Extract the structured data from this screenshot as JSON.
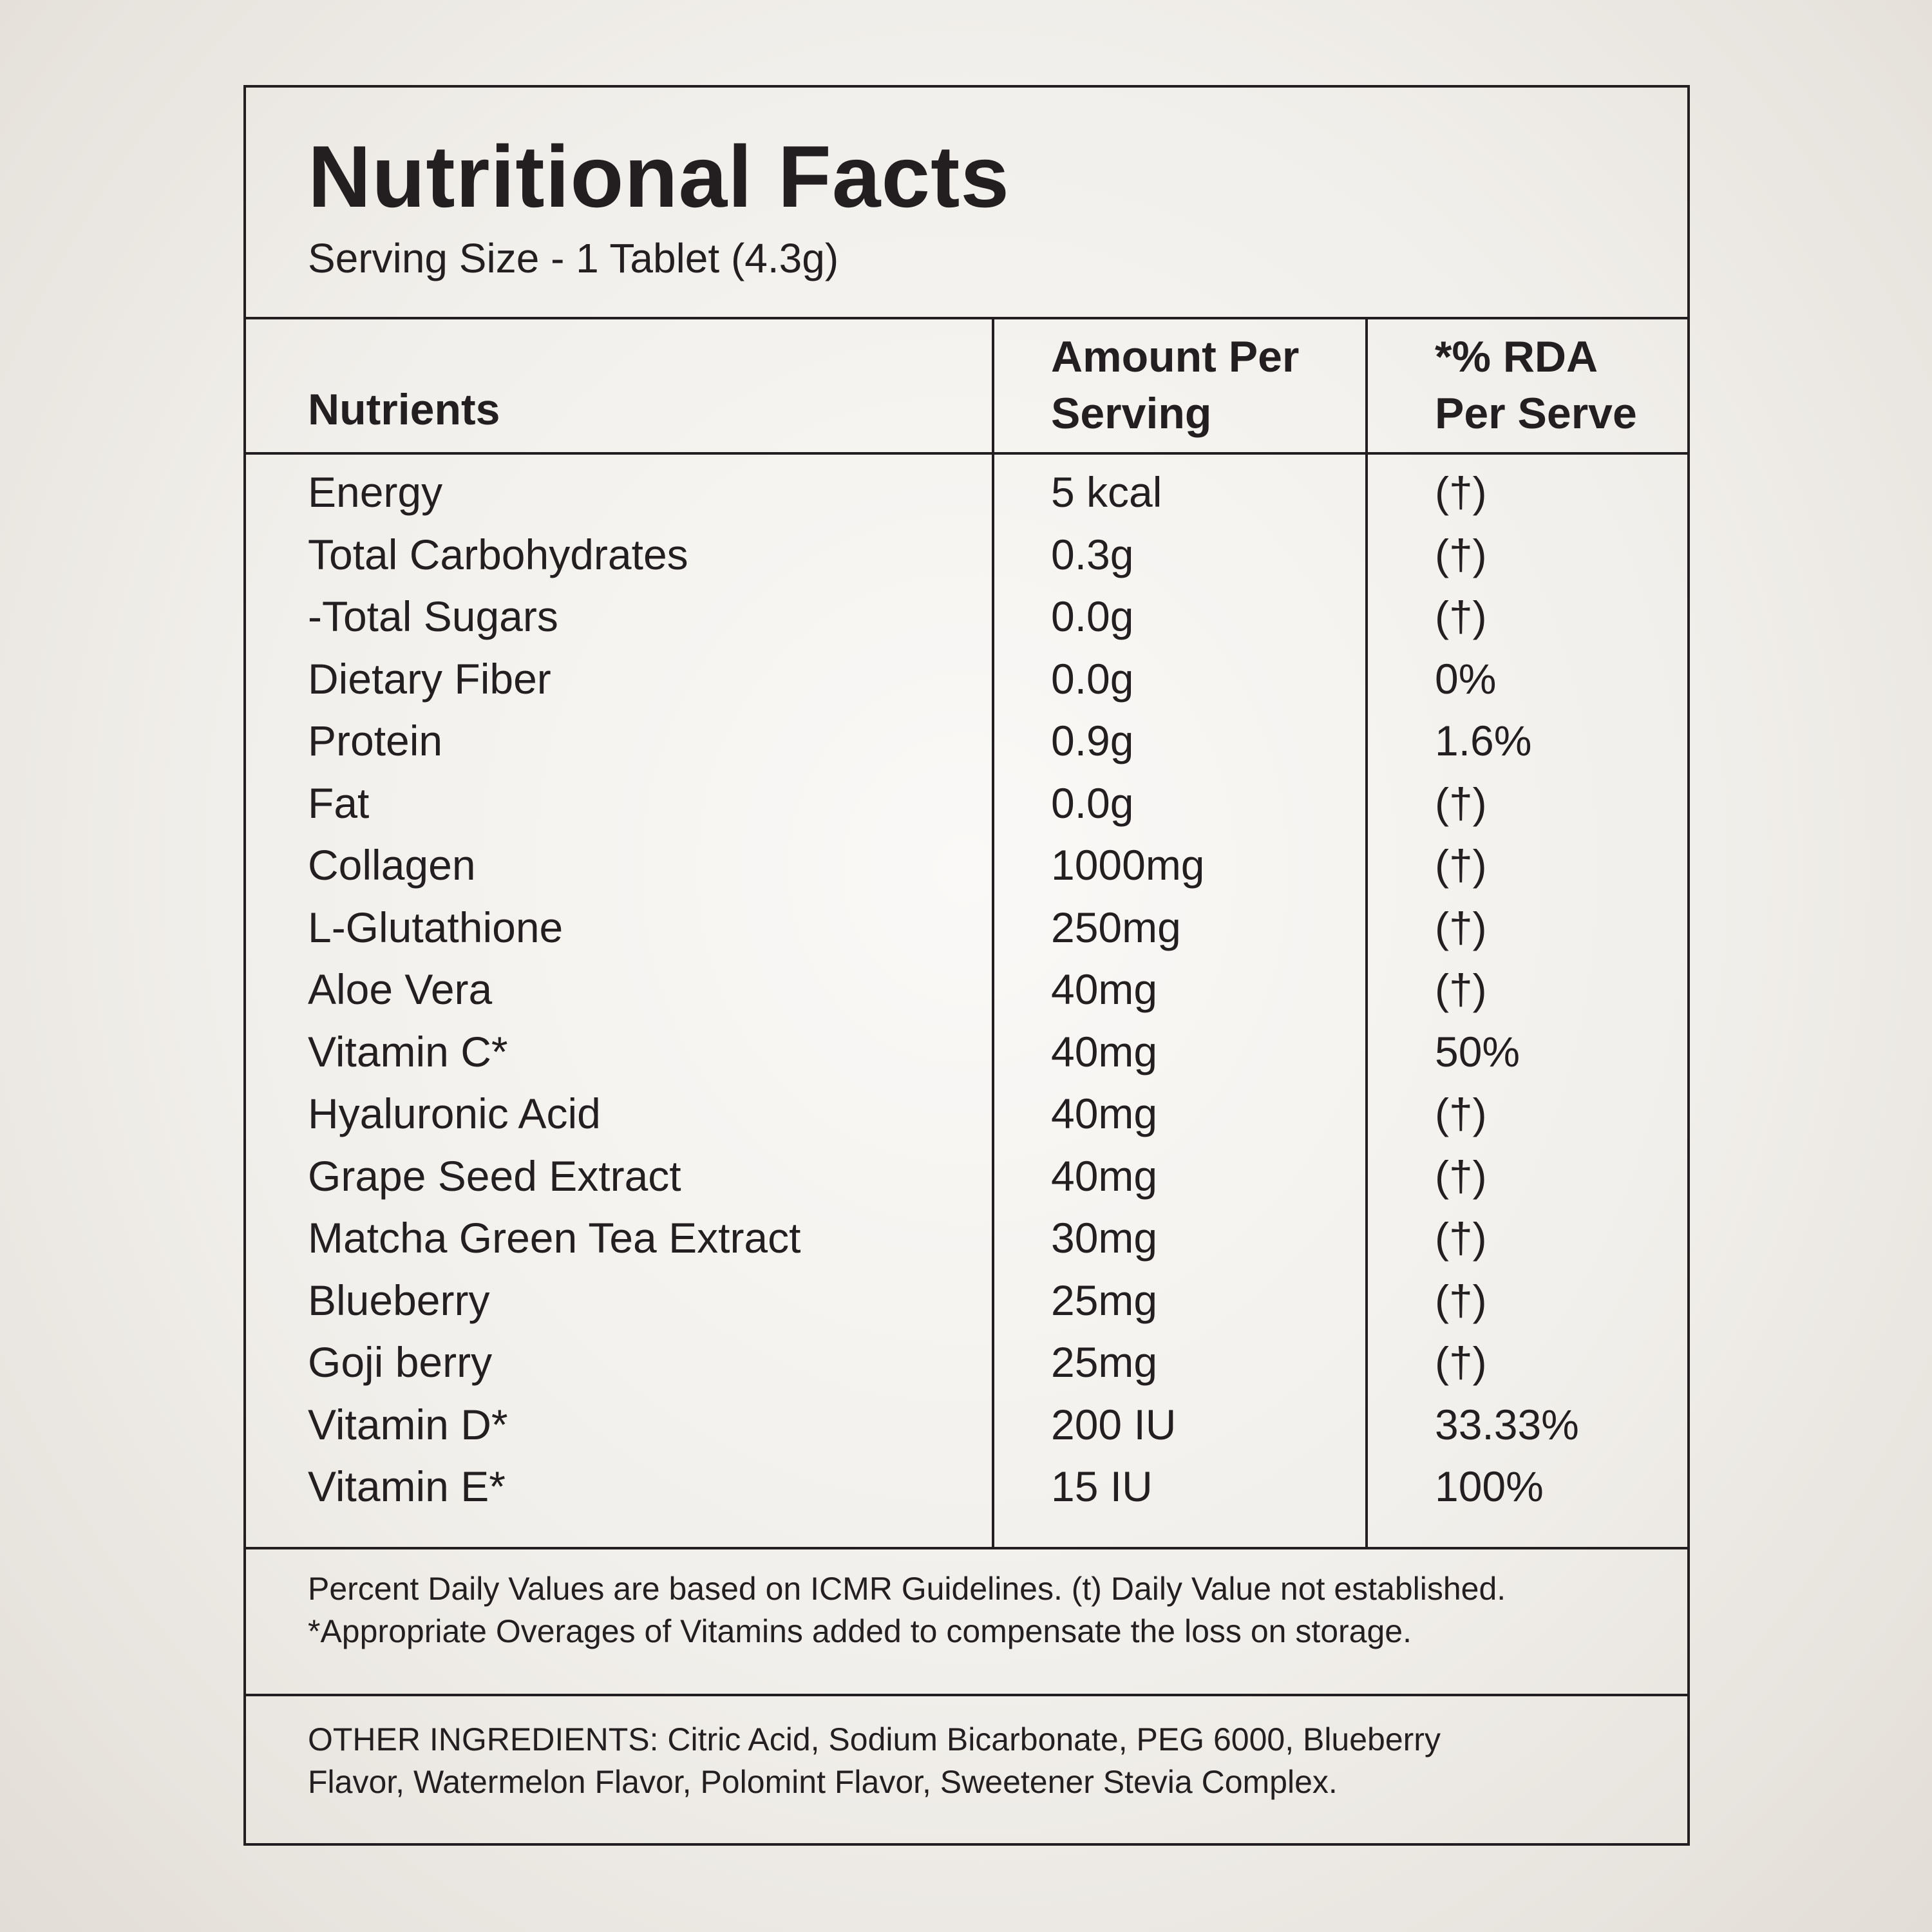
{
  "header": {
    "title": "Nutritional Facts",
    "serving_size": "Serving Size - 1 Tablet (4.3g)"
  },
  "table": {
    "columns": {
      "nutrients": "Nutrients",
      "amount_line1": "Amount Per",
      "amount_line2": "Serving",
      "rda_line1": "*% RDA",
      "rda_line2": "Per Serve"
    },
    "rows": [
      {
        "nutrient": "Energy",
        "amount": "5 kcal",
        "rda": "(†)"
      },
      {
        "nutrient": "Total Carbohydrates",
        "amount": "0.3g",
        "rda": "(†)"
      },
      {
        "nutrient": "-Total Sugars",
        "amount": "0.0g",
        "rda": "(†)"
      },
      {
        "nutrient": "Dietary Fiber",
        "amount": "0.0g",
        "rda": "0%"
      },
      {
        "nutrient": "Protein",
        "amount": "0.9g",
        "rda": "1.6%"
      },
      {
        "nutrient": "Fat",
        "amount": "0.0g",
        "rda": "(†)"
      },
      {
        "nutrient": "Collagen",
        "amount": "1000mg",
        "rda": "(†)"
      },
      {
        "nutrient": "L-Glutathione",
        "amount": "250mg",
        "rda": "(†)"
      },
      {
        "nutrient": "Aloe Vera",
        "amount": "40mg",
        "rda": "(†)"
      },
      {
        "nutrient": "Vitamin C*",
        "amount": "40mg",
        "rda": "50%"
      },
      {
        "nutrient": "Hyaluronic Acid",
        "amount": "40mg",
        "rda": "(†)"
      },
      {
        "nutrient": "Grape Seed Extract",
        "amount": "40mg",
        "rda": "(†)"
      },
      {
        "nutrient": "Matcha Green Tea Extract",
        "amount": "30mg",
        "rda": "(†)"
      },
      {
        "nutrient": "Blueberry",
        "amount": "25mg",
        "rda": "(†)"
      },
      {
        "nutrient": "Goji berry",
        "amount": "25mg",
        "rda": "(†)"
      },
      {
        "nutrient": "Vitamin D*",
        "amount": "200 IU",
        "rda": "33.33%"
      },
      {
        "nutrient": "Vitamin E*",
        "amount": "15 IU",
        "rda": "100%"
      }
    ]
  },
  "footnotes": {
    "line1": "Percent Daily Values are based on ICMR Guidelines. (t) Daily Value not established.",
    "line2": "*Appropriate Overages of Vitamins added to compensate the loss on storage."
  },
  "other_ingredients": {
    "line1": "OTHER INGREDIENTS: Citric Acid, Sodium Bicarbonate, PEG 6000, Blueberry",
    "line2": "Flavor, Watermelon Flavor, Polomint Flavor, Sweetener Stevia Complex."
  },
  "colors": {
    "ink": "#231f20",
    "background": "#f1efeb"
  }
}
